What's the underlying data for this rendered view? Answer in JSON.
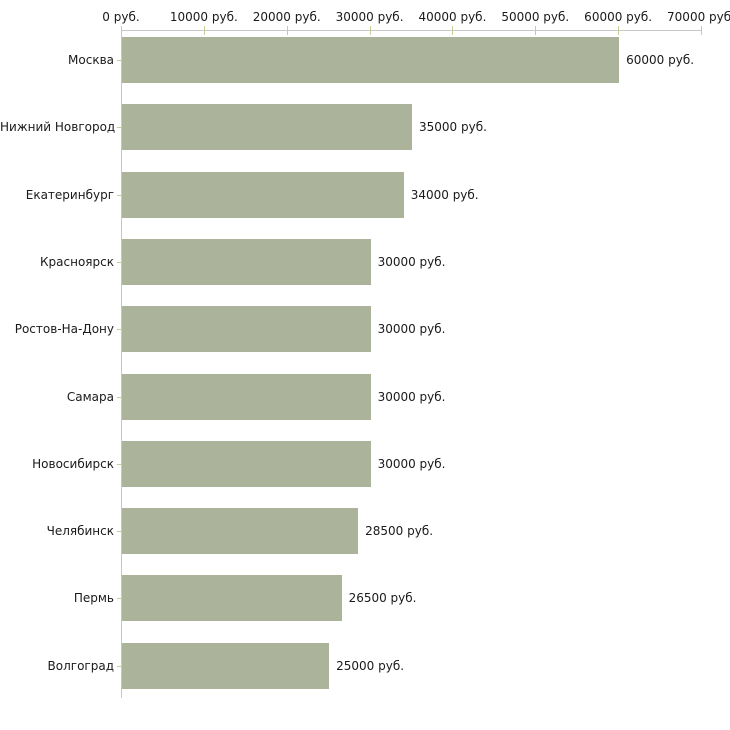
{
  "chart_data": {
    "type": "bar",
    "orientation": "horizontal",
    "title": "",
    "xlabel": "",
    "ylabel": "",
    "grid": false,
    "legend": false,
    "categories": [
      "Москва",
      "Нижний Новгород",
      "Екатеринбург",
      "Красноярск",
      "Ростов-На-Дону",
      "Самара",
      "Новосибирск",
      "Челябинск",
      "Пермь",
      "Волгоград"
    ],
    "values": [
      60000,
      35000,
      34000,
      30000,
      30000,
      30000,
      30000,
      28500,
      26500,
      25000
    ],
    "value_labels": [
      "60000 руб.",
      "35000 руб.",
      "34000 руб.",
      "30000 руб.",
      "30000 руб.",
      "30000 руб.",
      "30000 руб.",
      "28500 руб.",
      "26500 руб.",
      "25000 руб."
    ],
    "x_axis": {
      "position": "top",
      "range": [
        0,
        70000
      ],
      "ticks": [
        0,
        10000,
        20000,
        30000,
        40000,
        50000,
        60000,
        70000
      ],
      "tick_labels": [
        "0 руб.",
        "10000 руб.",
        "20000 руб.",
        "30000 руб.",
        "40000 руб.",
        "50000 руб.",
        "60000 руб.",
        "70000 руб."
      ],
      "unit": "руб."
    },
    "colors": {
      "bar": "#abb39a",
      "axis_line": "#c6c6c2",
      "tick": "#cbcb96",
      "text": "#1a1a1a",
      "background": "#ffffff"
    }
  }
}
